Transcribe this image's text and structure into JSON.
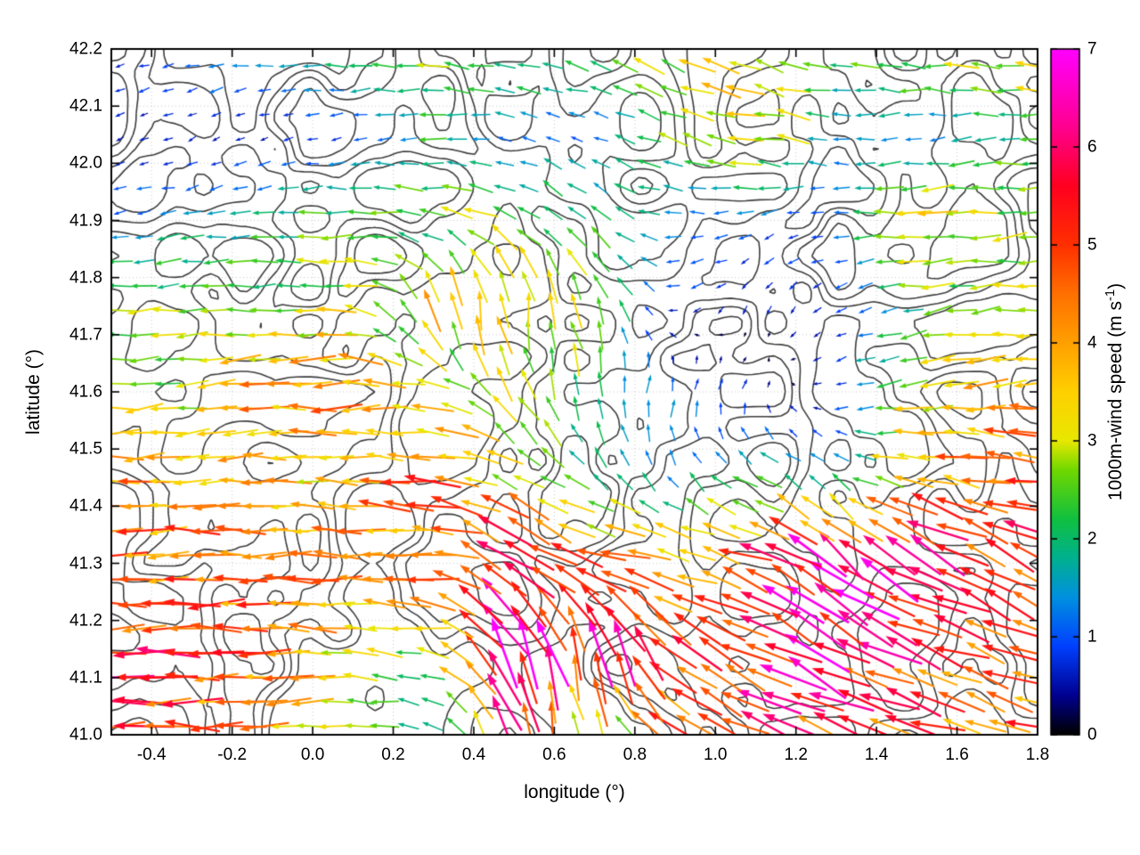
{
  "figure": {
    "background": "#ffffff",
    "plot": {
      "xlabel": "longitude (°)",
      "ylabel": "latitude (°)",
      "x_ticks": [
        "-0.4",
        "-0.2",
        "0.0",
        "0.2",
        "0.4",
        "0.6",
        "0.8",
        "1.0",
        "1.2",
        "1.4",
        "1.6",
        "1.8"
      ],
      "y_ticks": [
        "41.0",
        "41.1",
        "41.2",
        "41.3",
        "41.4",
        "41.5",
        "41.6",
        "41.7",
        "41.8",
        "41.9",
        "42.0",
        "42.1",
        "42.2"
      ],
      "border_color": "#000000",
      "grid_color": "#c9c9c9",
      "contour_color": "#3d3d3d"
    },
    "colorbar": {
      "label_prefix": "1000m-wind speed (m s",
      "label_sup": "-1",
      "label_suffix": ")",
      "ticks": [
        "0",
        "1",
        "2",
        "3",
        "4",
        "5",
        "6",
        "7"
      ]
    }
  },
  "chart_data": {
    "type": "quiver",
    "title": "",
    "xlabel": "longitude (°)",
    "ylabel": "latitude (°)",
    "colorbar_label": "1000m-wind speed (m s^-1)",
    "xlim": [
      -0.5,
      1.8
    ],
    "ylim": [
      41.0,
      42.2
    ],
    "speed_range": [
      0,
      7
    ],
    "grid_on": true,
    "legend": "colorbar-right",
    "overlay": "terrain contour lines (unlabeled, dark gray)",
    "palette_stops": [
      [
        0.0,
        "#000000"
      ],
      [
        0.057,
        "#000090"
      ],
      [
        0.129,
        "#0040ff"
      ],
      [
        0.2,
        "#0090e0"
      ],
      [
        0.257,
        "#00b090"
      ],
      [
        0.314,
        "#10c040"
      ],
      [
        0.386,
        "#70d800"
      ],
      [
        0.429,
        "#e8e800"
      ],
      [
        0.5,
        "#ffd000"
      ],
      [
        0.571,
        "#ffa000"
      ],
      [
        0.643,
        "#ff7000"
      ],
      [
        0.714,
        "#ff3000"
      ],
      [
        0.8,
        "#ff0020"
      ],
      [
        0.886,
        "#ff0090"
      ],
      [
        1.0,
        "#ff00ff"
      ]
    ],
    "grid_lon": [
      -0.5,
      -0.3,
      -0.1,
      0.1,
      0.3,
      0.5,
      0.7,
      0.9,
      1.1,
      1.3,
      1.5,
      1.8
    ],
    "grid_lat": [
      41.0,
      41.15,
      41.3,
      41.45,
      41.6,
      41.75,
      41.9,
      42.05,
      42.2
    ],
    "speed_ms": [
      [
        5.0,
        4.5,
        3.5,
        2.5,
        2.0,
        5.5,
        2.5,
        4.5,
        5.0,
        5.0,
        4.5,
        4.5
      ],
      [
        5.5,
        5.0,
        4.5,
        3.0,
        2.5,
        6.5,
        6.0,
        5.5,
        5.5,
        6.0,
        5.0,
        4.5
      ],
      [
        4.5,
        4.5,
        4.0,
        4.0,
        4.5,
        6.0,
        4.5,
        4.0,
        5.0,
        6.5,
        5.5,
        5.0
      ],
      [
        4.0,
        4.0,
        3.5,
        3.5,
        4.5,
        3.0,
        2.0,
        1.5,
        2.0,
        1.5,
        4.0,
        4.5
      ],
      [
        2.5,
        3.0,
        4.0,
        4.0,
        3.0,
        3.0,
        2.0,
        1.2,
        0.8,
        0.8,
        3.0,
        4.0
      ],
      [
        2.5,
        2.5,
        2.5,
        3.0,
        4.0,
        3.5,
        3.0,
        0.8,
        0.6,
        0.8,
        2.0,
        3.0
      ],
      [
        1.2,
        1.5,
        2.0,
        2.5,
        2.5,
        3.0,
        2.0,
        1.5,
        1.0,
        1.0,
        3.5,
        2.5
      ],
      [
        0.6,
        0.5,
        0.5,
        0.8,
        2.0,
        1.0,
        1.0,
        2.5,
        3.5,
        1.5,
        1.0,
        2.5
      ],
      [
        0.5,
        1.5,
        1.5,
        2.0,
        2.5,
        2.5,
        2.5,
        3.0,
        3.5,
        2.5,
        3.0,
        3.0
      ]
    ],
    "direction_deg": [
      [
        180,
        178,
        180,
        175,
        160,
        105,
        95,
        150,
        160,
        160,
        162,
        165
      ],
      [
        180,
        180,
        180,
        178,
        170,
        115,
        100,
        140,
        155,
        150,
        158,
        162
      ],
      [
        182,
        180,
        180,
        180,
        175,
        140,
        170,
        168,
        160,
        140,
        150,
        155
      ],
      [
        182,
        182,
        180,
        180,
        175,
        155,
        140,
        120,
        150,
        140,
        168,
        170
      ],
      [
        185,
        185,
        182,
        180,
        170,
        120,
        90,
        75,
        60,
        200,
        190,
        180
      ],
      [
        185,
        185,
        182,
        175,
        100,
        95,
        110,
        200,
        250,
        210,
        190,
        185
      ],
      [
        190,
        190,
        185,
        180,
        170,
        150,
        140,
        180,
        200,
        180,
        180,
        185
      ],
      [
        200,
        210,
        200,
        190,
        180,
        170,
        160,
        160,
        170,
        180,
        190,
        180
      ],
      [
        200,
        190,
        185,
        180,
        175,
        170,
        165,
        160,
        160,
        170,
        175,
        170
      ]
    ],
    "direction_convention": "degrees the vector points toward; 0=east, 90=north, 180=west",
    "arrow_step_lon": 0.0597,
    "arrow_step_lat": 0.0428,
    "random_seed": 12345,
    "contour_seed": 777,
    "contour_levels": [
      0.34,
      0.46,
      0.58,
      0.7
    ]
  }
}
